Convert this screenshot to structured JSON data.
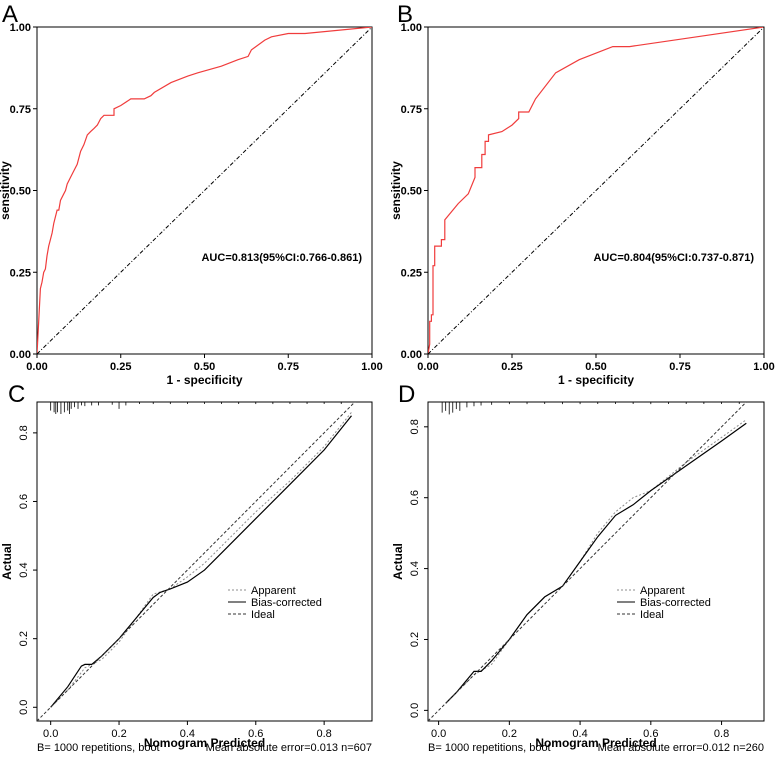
{
  "chart_data": [
    {
      "panel": "A",
      "type": "line",
      "xlabel": "1 - specificity",
      "ylabel": "sensitivity",
      "xlim": [
        0,
        1
      ],
      "ylim": [
        0,
        1
      ],
      "xticks": [
        "0.00",
        "0.25",
        "0.50",
        "0.75",
        "1.00"
      ],
      "yticks": [
        "0.00",
        "0.25",
        "0.50",
        "0.75",
        "1.00"
      ],
      "annotation": "AUC=0.813(95%CI:0.766-0.861)",
      "colors": {
        "roc": "#f03c3c",
        "diagonal": "#000000"
      },
      "series": [
        {
          "style": "roc",
          "x": [
            0,
            0.005,
            0.01,
            0.015,
            0.02,
            0.025,
            0.03,
            0.035,
            0.04,
            0.045,
            0.05,
            0.06,
            0.065,
            0.07,
            0.08,
            0.085,
            0.09,
            0.1,
            0.11,
            0.12,
            0.13,
            0.14,
            0.15,
            0.16,
            0.17,
            0.18,
            0.19,
            0.2,
            0.21,
            0.23,
            0.23,
            0.25,
            0.28,
            0.32,
            0.34,
            0.35,
            0.4,
            0.45,
            0.48,
            0.55,
            0.6,
            0.63,
            0.64,
            0.68,
            0.7,
            0.75,
            0.8,
            1.0
          ],
          "y": [
            0,
            0.1,
            0.2,
            0.22,
            0.25,
            0.26,
            0.3,
            0.33,
            0.35,
            0.37,
            0.4,
            0.44,
            0.44,
            0.47,
            0.49,
            0.5,
            0.52,
            0.54,
            0.56,
            0.58,
            0.62,
            0.64,
            0.67,
            0.68,
            0.69,
            0.7,
            0.72,
            0.73,
            0.73,
            0.73,
            0.75,
            0.76,
            0.78,
            0.78,
            0.79,
            0.8,
            0.83,
            0.85,
            0.86,
            0.88,
            0.9,
            0.91,
            0.93,
            0.96,
            0.97,
            0.98,
            0.98,
            1.0
          ]
        },
        {
          "style": "diagonal",
          "x": [
            0,
            1
          ],
          "y": [
            0,
            1
          ]
        }
      ]
    },
    {
      "panel": "B",
      "type": "line",
      "xlabel": "1 - specificity",
      "ylabel": "sensitivity",
      "xlim": [
        0,
        1
      ],
      "ylim": [
        0,
        1
      ],
      "xticks": [
        "0.00",
        "0.25",
        "0.50",
        "0.75",
        "1.00"
      ],
      "yticks": [
        "0.00",
        "0.25",
        "0.50",
        "0.75",
        "1.00"
      ],
      "annotation": "AUC=0.804(95%CI:0.737-0.871)",
      "colors": {
        "roc": "#f03c3c",
        "diagonal": "#000000"
      },
      "series": [
        {
          "style": "roc",
          "x": [
            0,
            0.005,
            0.005,
            0.01,
            0.01,
            0.015,
            0.015,
            0.02,
            0.02,
            0.04,
            0.04,
            0.05,
            0.05,
            0.09,
            0.12,
            0.14,
            0.14,
            0.16,
            0.16,
            0.17,
            0.17,
            0.18,
            0.18,
            0.22,
            0.25,
            0.27,
            0.27,
            0.3,
            0.32,
            0.38,
            0.45,
            0.55,
            0.6,
            0.8,
            1.0
          ],
          "y": [
            0,
            0.03,
            0.1,
            0.1,
            0.12,
            0.12,
            0.27,
            0.27,
            0.33,
            0.33,
            0.35,
            0.35,
            0.41,
            0.46,
            0.49,
            0.54,
            0.57,
            0.57,
            0.61,
            0.61,
            0.65,
            0.65,
            0.67,
            0.68,
            0.7,
            0.72,
            0.74,
            0.74,
            0.78,
            0.86,
            0.9,
            0.94,
            0.94,
            0.97,
            1.0
          ]
        },
        {
          "style": "diagonal",
          "x": [
            0,
            1
          ],
          "y": [
            0,
            1
          ]
        }
      ]
    },
    {
      "panel": "C",
      "type": "line",
      "xlabel": "Nomogram Predicted",
      "ylabel": "Actual",
      "xlim": [
        -0.04,
        0.94
      ],
      "ylim": [
        -0.04,
        0.89
      ],
      "xticks": [
        "0.0",
        "0.2",
        "0.4",
        "0.6",
        "0.8"
      ],
      "yticks": [
        "0.0",
        "0.2",
        "0.4",
        "0.6",
        "0.8"
      ],
      "legend": [
        "Apparent",
        "Bias-corrected",
        "Ideal"
      ],
      "footer_left": "B= 1000 repetitions, boot",
      "footer_right": "Mean absolute error=0.013 n=607",
      "rug_x": [
        0.0,
        0.01,
        0.015,
        0.02,
        0.03,
        0.04,
        0.05,
        0.055,
        0.06,
        0.07,
        0.08,
        0.09,
        0.1,
        0.12,
        0.14,
        0.18,
        0.2,
        0.22,
        0.26,
        0.3,
        0.35,
        0.4,
        0.45,
        0.5,
        0.55,
        0.6,
        0.65,
        0.7,
        0.75,
        0.8,
        0.85
      ],
      "rug_h": [
        0.025,
        0.03,
        0.035,
        0.03,
        0.035,
        0.03,
        0.025,
        0.035,
        0.02,
        0.015,
        0.02,
        0.01,
        0.012,
        0.01,
        0.01,
        0.008,
        0.02,
        0.01,
        0.006,
        0.006,
        0.006,
        0.006,
        0.006,
        0.006,
        0.005,
        0.006,
        0.006,
        0.005,
        0.006,
        0.005,
        0.004
      ],
      "series": [
        {
          "name": "Apparent",
          "style": "apparent",
          "x": [
            0.0,
            0.05,
            0.1,
            0.15,
            0.2,
            0.25,
            0.3,
            0.35,
            0.4,
            0.45,
            0.5,
            0.6,
            0.7,
            0.8,
            0.88
          ],
          "y": [
            0.0,
            0.05,
            0.115,
            0.14,
            0.19,
            0.26,
            0.33,
            0.345,
            0.38,
            0.42,
            0.47,
            0.57,
            0.66,
            0.76,
            0.86
          ]
        },
        {
          "name": "Bias-corrected",
          "style": "bias",
          "x": [
            0.0,
            0.05,
            0.09,
            0.1,
            0.12,
            0.15,
            0.2,
            0.25,
            0.3,
            0.32,
            0.35,
            0.4,
            0.45,
            0.5,
            0.6,
            0.7,
            0.8,
            0.88
          ],
          "y": [
            0.0,
            0.06,
            0.12,
            0.125,
            0.125,
            0.15,
            0.2,
            0.26,
            0.32,
            0.335,
            0.345,
            0.365,
            0.4,
            0.45,
            0.55,
            0.65,
            0.75,
            0.85
          ]
        },
        {
          "name": "Ideal",
          "style": "ideal",
          "x": [
            -0.04,
            0.94
          ],
          "y": [
            -0.04,
            0.94
          ]
        }
      ]
    },
    {
      "panel": "D",
      "type": "line",
      "xlabel": "Nomogram Predicted",
      "ylabel": "Actual",
      "xlim": [
        -0.03,
        0.92
      ],
      "ylim": [
        -0.03,
        0.87
      ],
      "xticks": [
        "0.0",
        "0.2",
        "0.4",
        "0.6",
        "0.8"
      ],
      "yticks": [
        "0.0",
        "0.2",
        "0.4",
        "0.6",
        "0.8"
      ],
      "legend": [
        "Apparent",
        "Bias-corrected",
        "Ideal"
      ],
      "footer_left": "B= 1000 repetitions, boot",
      "footer_right": "Mean absolute error=0.012 n=260",
      "rug_x": [
        0.01,
        0.02,
        0.03,
        0.04,
        0.05,
        0.06,
        0.08,
        0.1,
        0.12,
        0.15,
        0.2,
        0.25,
        0.3,
        0.35,
        0.4,
        0.45,
        0.5,
        0.55,
        0.6,
        0.65,
        0.7,
        0.75,
        0.8,
        0.85
      ],
      "rug_h": [
        0.03,
        0.025,
        0.035,
        0.03,
        0.02,
        0.025,
        0.015,
        0.012,
        0.01,
        0.008,
        0.006,
        0.006,
        0.005,
        0.006,
        0.006,
        0.005,
        0.005,
        0.005,
        0.006,
        0.005,
        0.005,
        0.005,
        0.004,
        0.004
      ],
      "series": [
        {
          "name": "Apparent",
          "style": "apparent",
          "x": [
            0.02,
            0.05,
            0.1,
            0.15,
            0.2,
            0.25,
            0.3,
            0.35,
            0.4,
            0.45,
            0.5,
            0.55,
            0.6,
            0.7,
            0.8,
            0.87
          ],
          "y": [
            0.02,
            0.05,
            0.1,
            0.13,
            0.2,
            0.27,
            0.32,
            0.35,
            0.42,
            0.5,
            0.56,
            0.6,
            0.62,
            0.7,
            0.77,
            0.82
          ]
        },
        {
          "name": "Bias-corrected",
          "style": "bias",
          "x": [
            0.02,
            0.05,
            0.1,
            0.12,
            0.15,
            0.2,
            0.25,
            0.3,
            0.35,
            0.4,
            0.45,
            0.5,
            0.55,
            0.6,
            0.7,
            0.8,
            0.87
          ],
          "y": [
            0.02,
            0.05,
            0.11,
            0.11,
            0.14,
            0.2,
            0.27,
            0.32,
            0.35,
            0.42,
            0.49,
            0.55,
            0.58,
            0.62,
            0.69,
            0.76,
            0.81
          ]
        },
        {
          "name": "Ideal",
          "style": "ideal",
          "x": [
            -0.03,
            0.92
          ],
          "y": [
            -0.03,
            0.92
          ]
        }
      ]
    }
  ]
}
